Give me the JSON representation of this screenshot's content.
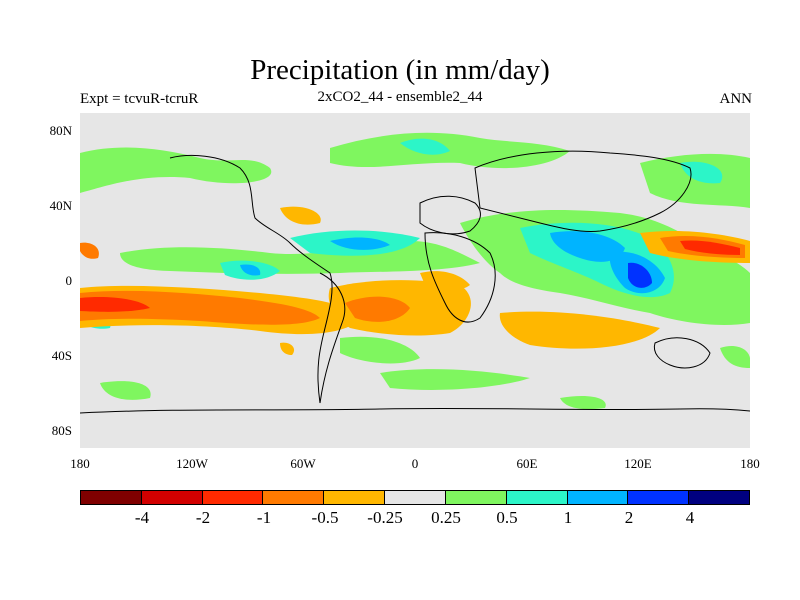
{
  "title": "Precipitation (in mm/day)",
  "left_label": "Expt = tcvuR-tcruR",
  "center_label": "2xCO2_44 - ensemble2_44",
  "right_label": "ANN",
  "map": {
    "y_ticks": [
      "80N",
      "40N",
      "0",
      "40S",
      "80S"
    ],
    "x_ticks": [
      "180",
      "120W",
      "60W",
      "0",
      "60E",
      "120E",
      "180"
    ],
    "colors": {
      "lt_m4": "#7f0000",
      "m4_m2": "#d20000",
      "m2_m1": "#ff2a00",
      "m1_m05": "#ff7a00",
      "m05_m025": "#ffb700",
      "neutral": "#e6e6e6",
      "p025_p05": "#7ff65f",
      "p05_p1": "#2cf5c8",
      "p1_p2": "#00b4ff",
      "p2_p4": "#0032ff",
      "gt_p4": "#000080"
    }
  },
  "colorbar": {
    "colors": [
      "#7f0000",
      "#d20000",
      "#ff2a00",
      "#ff7a00",
      "#ffb700",
      "#e6e6e6",
      "#7ff65f",
      "#2cf5c8",
      "#00b4ff",
      "#0032ff",
      "#000080"
    ],
    "labels": [
      "-4",
      "-2",
      "-1",
      "-0.5",
      "-0.25",
      "0.25",
      "0.5",
      "1",
      "2",
      "4"
    ]
  }
}
